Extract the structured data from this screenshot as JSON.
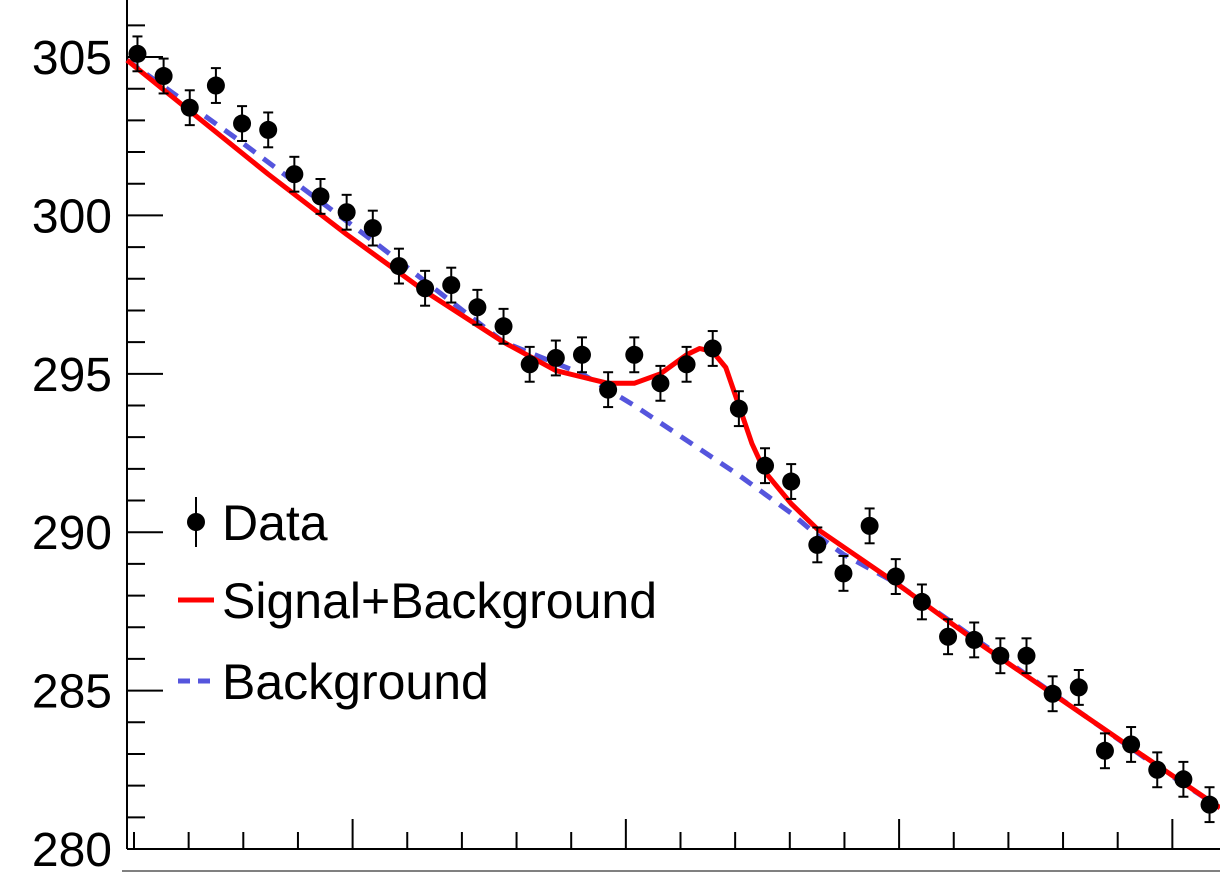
{
  "chart_data": {
    "type": "scatter",
    "title": "",
    "xlabel": "",
    "ylabel": "",
    "ylim": [
      280,
      306.8
    ],
    "y_ticks": [
      {
        "value": 305,
        "label": "305"
      },
      {
        "value": 300,
        "label": "300"
      },
      {
        "value": 295,
        "label": "295"
      },
      {
        "value": 290,
        "label": "290"
      },
      {
        "value": 285,
        "label": "285"
      },
      {
        "value": 280,
        "label": "280"
      }
    ],
    "grid": false,
    "legend_position": "left",
    "legend": [
      {
        "label": "Data",
        "marker": "point-errorbar",
        "color": "#000000"
      },
      {
        "label": "Signal+Background",
        "marker": "solid-line",
        "color": "#ff0000"
      },
      {
        "label": "Background",
        "marker": "dashed-line",
        "color": "#5555dd"
      }
    ],
    "series": [
      {
        "name": "Data",
        "style": "points",
        "color": "#000000",
        "x": [
          1,
          2,
          3,
          4,
          5,
          6,
          7,
          8,
          9,
          10,
          11,
          12,
          13,
          14,
          15,
          16,
          17,
          18,
          19,
          20,
          21,
          22,
          23,
          24,
          25,
          26,
          27,
          28,
          29,
          30,
          31,
          32,
          33,
          34,
          35,
          36,
          37,
          38,
          39,
          40,
          41,
          42
        ],
        "y": [
          305.1,
          304.4,
          303.4,
          304.1,
          302.9,
          302.7,
          301.3,
          300.6,
          300.1,
          299.6,
          298.4,
          297.7,
          297.8,
          297.1,
          296.5,
          295.3,
          295.5,
          295.6,
          294.5,
          295.6,
          294.7,
          295.3,
          295.8,
          293.9,
          292.1,
          291.6,
          289.6,
          288.7,
          290.2,
          288.6,
          287.8,
          286.7,
          286.6,
          286.1,
          286.1,
          284.9,
          285.1,
          283.1,
          283.3,
          282.5,
          282.2,
          281.4
        ],
        "err": [
          0.55,
          0.55,
          0.55,
          0.55,
          0.55,
          0.55,
          0.55,
          0.55,
          0.55,
          0.55,
          0.55,
          0.55,
          0.55,
          0.55,
          0.55,
          0.55,
          0.55,
          0.55,
          0.55,
          0.55,
          0.55,
          0.55,
          0.55,
          0.55,
          0.55,
          0.55,
          0.55,
          0.55,
          0.55,
          0.55,
          0.55,
          0.55,
          0.55,
          0.55,
          0.55,
          0.55,
          0.55,
          0.55,
          0.55,
          0.55,
          0.55,
          0.55
        ]
      },
      {
        "name": "Signal+Background",
        "style": "line",
        "color": "#ff0000",
        "x": [
          0.6,
          3,
          6,
          9,
          12,
          15,
          17,
          18,
          19,
          19.5,
          20,
          21,
          22,
          22.5,
          23,
          23.5,
          24,
          24.5,
          25,
          26,
          27,
          30,
          33,
          36,
          39,
          42.4
        ],
        "y": [
          304.9,
          303.3,
          301.3,
          299.4,
          297.6,
          296.0,
          295.1,
          294.9,
          294.7,
          294.7,
          294.7,
          295.0,
          295.6,
          295.8,
          295.7,
          295.2,
          294.0,
          292.8,
          291.9,
          290.9,
          290.1,
          288.4,
          286.6,
          284.9,
          283.2,
          281.3
        ]
      },
      {
        "name": "Background",
        "style": "dashed",
        "color": "#5555dd",
        "x": [
          0.6,
          5,
          10,
          15,
          18,
          20,
          22,
          24,
          26,
          27,
          28,
          30,
          35,
          40,
          42.4
        ],
        "y": [
          304.9,
          302.3,
          299.2,
          296.0,
          295.0,
          294.0,
          292.9,
          291.8,
          290.6,
          289.9,
          289.3,
          288.4,
          285.5,
          282.6,
          281.3
        ]
      }
    ]
  }
}
